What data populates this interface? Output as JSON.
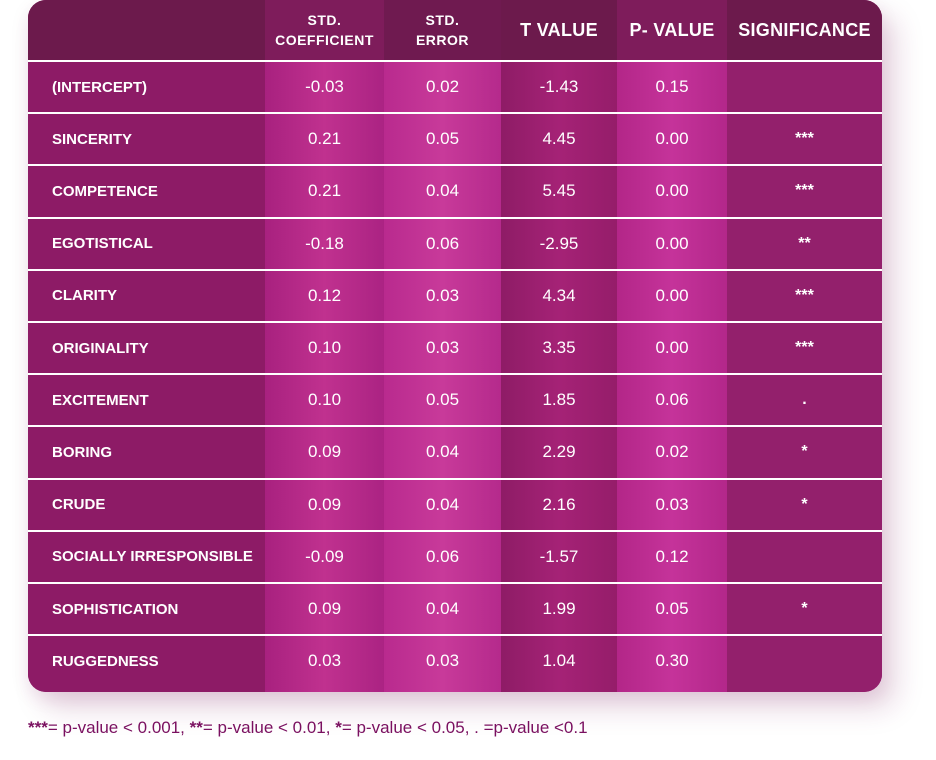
{
  "header": {
    "std_coefficient": [
      "STD.",
      "COEFFICIENT"
    ],
    "std_error": [
      "STD.",
      "ERROR"
    ],
    "t_value": "T VALUE",
    "p_value": "P- VALUE",
    "significance": "SIGNIFICANCE"
  },
  "chart_data": {
    "type": "table",
    "columns": [
      "",
      "STD. COEFFICIENT",
      "STD. ERROR",
      "T VALUE",
      "P- VALUE",
      "SIGNIFICANCE"
    ],
    "rows": [
      [
        "(INTERCEPT)",
        "-0.03",
        "0.02",
        "-1.43",
        "0.15",
        ""
      ],
      [
        "SINCERITY",
        "0.21",
        "0.05",
        "4.45",
        "0.00",
        "***"
      ],
      [
        "COMPETENCE",
        "0.21",
        "0.04",
        "5.45",
        "0.00",
        "***"
      ],
      [
        "EGOTISTICAL",
        "-0.18",
        "0.06",
        "-2.95",
        "0.00",
        "**"
      ],
      [
        "CLARITY",
        "0.12",
        "0.03",
        "4.34",
        "0.00",
        "***"
      ],
      [
        "ORIGINALITY",
        "0.10",
        "0.03",
        "3.35",
        "0.00",
        "***"
      ],
      [
        "EXCITEMENT",
        "0.10",
        "0.05",
        "1.85",
        "0.06",
        "."
      ],
      [
        "BORING",
        "0.09",
        "0.04",
        "2.29",
        "0.02",
        "*"
      ],
      [
        "CRUDE",
        "0.09",
        "0.04",
        "2.16",
        "0.03",
        "*"
      ],
      [
        "SOCIALLY IRRESPONSIBLE",
        "-0.09",
        "0.06",
        "-1.57",
        "0.12",
        ""
      ],
      [
        "SOPHISTICATION",
        "0.09",
        "0.04",
        "1.99",
        "0.05",
        "*"
      ],
      [
        "RUGGEDNESS",
        "0.03",
        "0.03",
        "1.04",
        "0.30",
        ""
      ]
    ]
  },
  "footnote": {
    "part1_bold": "***",
    "part1": "= p-value < 0.001, ",
    "part2_bold": "**",
    "part2": "= p-value < 0.01, ",
    "part3_bold": "*",
    "part3": "= p-value < 0.05, . =p-value <0.1"
  },
  "colors": {
    "header_bg": "#6c1a4c",
    "label_col": "#8d1b66",
    "coef_col": "#b4288c",
    "err_col": "#c12f93",
    "t_col": "#a02072",
    "p_col": "#bd2a92",
    "sig_col": "#93206c",
    "footnote_text": "#7a1060"
  }
}
